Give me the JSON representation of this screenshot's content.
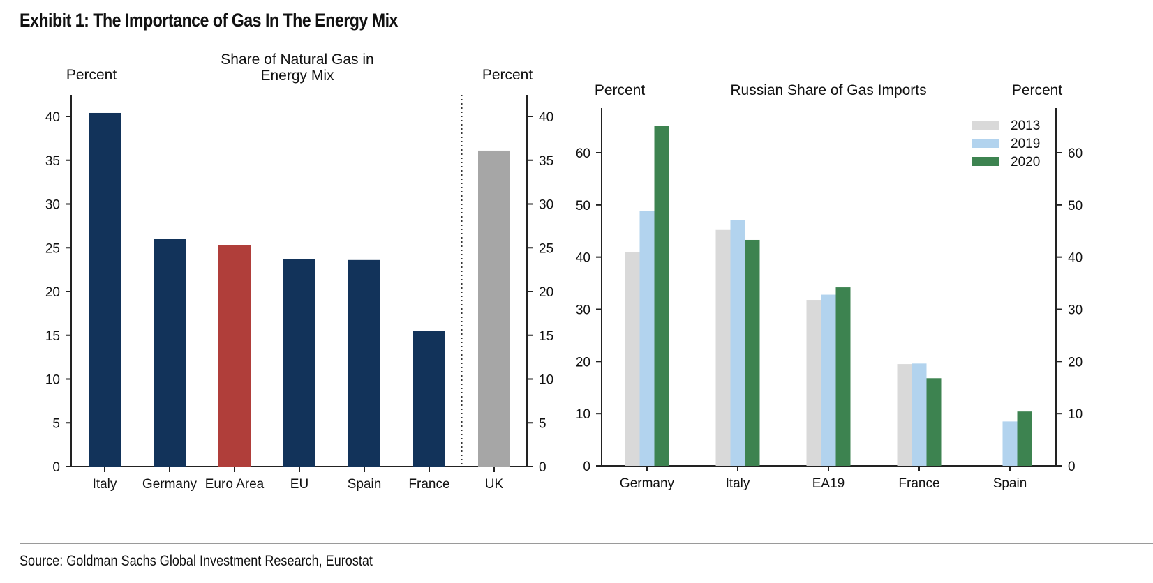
{
  "header": {
    "title": "Exhibit 1: The Importance of Gas In The Energy Mix"
  },
  "footer": {
    "source": "Source: Goldman Sachs Global Investment Research, Eurostat"
  },
  "colors": {
    "navy": "#12335a",
    "red": "#b03e3a",
    "grey": "#a6a6a6",
    "c2013": "#d9d9d9",
    "c2019": "#b2d3ee",
    "c2020": "#3d8350"
  },
  "chart_data": [
    {
      "type": "bar",
      "title": "Share of Natural Gas in Energy Mix",
      "title_lines": [
        "Share of Natural Gas in",
        "Energy Mix"
      ],
      "ylabel_left": "Percent",
      "ylabel_right": "Percent",
      "categories": [
        "Italy",
        "Germany",
        "Euro Area",
        "EU",
        "Spain",
        "France",
        "UK"
      ],
      "values": [
        40.4,
        26.0,
        25.3,
        23.7,
        23.6,
        15.5,
        36.1
      ],
      "bar_colors": [
        "navy",
        "navy",
        "red",
        "navy",
        "navy",
        "navy",
        "grey"
      ],
      "ylim": [
        0,
        42
      ],
      "yticks": [
        0,
        5,
        10,
        15,
        20,
        25,
        30,
        35,
        40
      ],
      "separator_after_category": "France"
    },
    {
      "type": "bar",
      "title": "Russian Share of Gas Imports",
      "ylabel_left": "Percent",
      "ylabel_right": "Percent",
      "categories": [
        "Germany",
        "Italy",
        "EA19",
        "France",
        "Spain"
      ],
      "series": [
        {
          "name": "2013",
          "color": "c2013",
          "values": [
            40.9,
            45.2,
            31.8,
            19.5,
            null
          ]
        },
        {
          "name": "2019",
          "color": "c2019",
          "values": [
            48.8,
            47.1,
            32.8,
            19.6,
            8.5
          ]
        },
        {
          "name": "2020",
          "color": "c2020",
          "values": [
            65.2,
            43.3,
            34.2,
            16.8,
            10.4
          ]
        }
      ],
      "ylim": [
        0,
        68
      ],
      "yticks": [
        0,
        10,
        20,
        30,
        40,
        50,
        60
      ],
      "legend": "top-right"
    }
  ]
}
